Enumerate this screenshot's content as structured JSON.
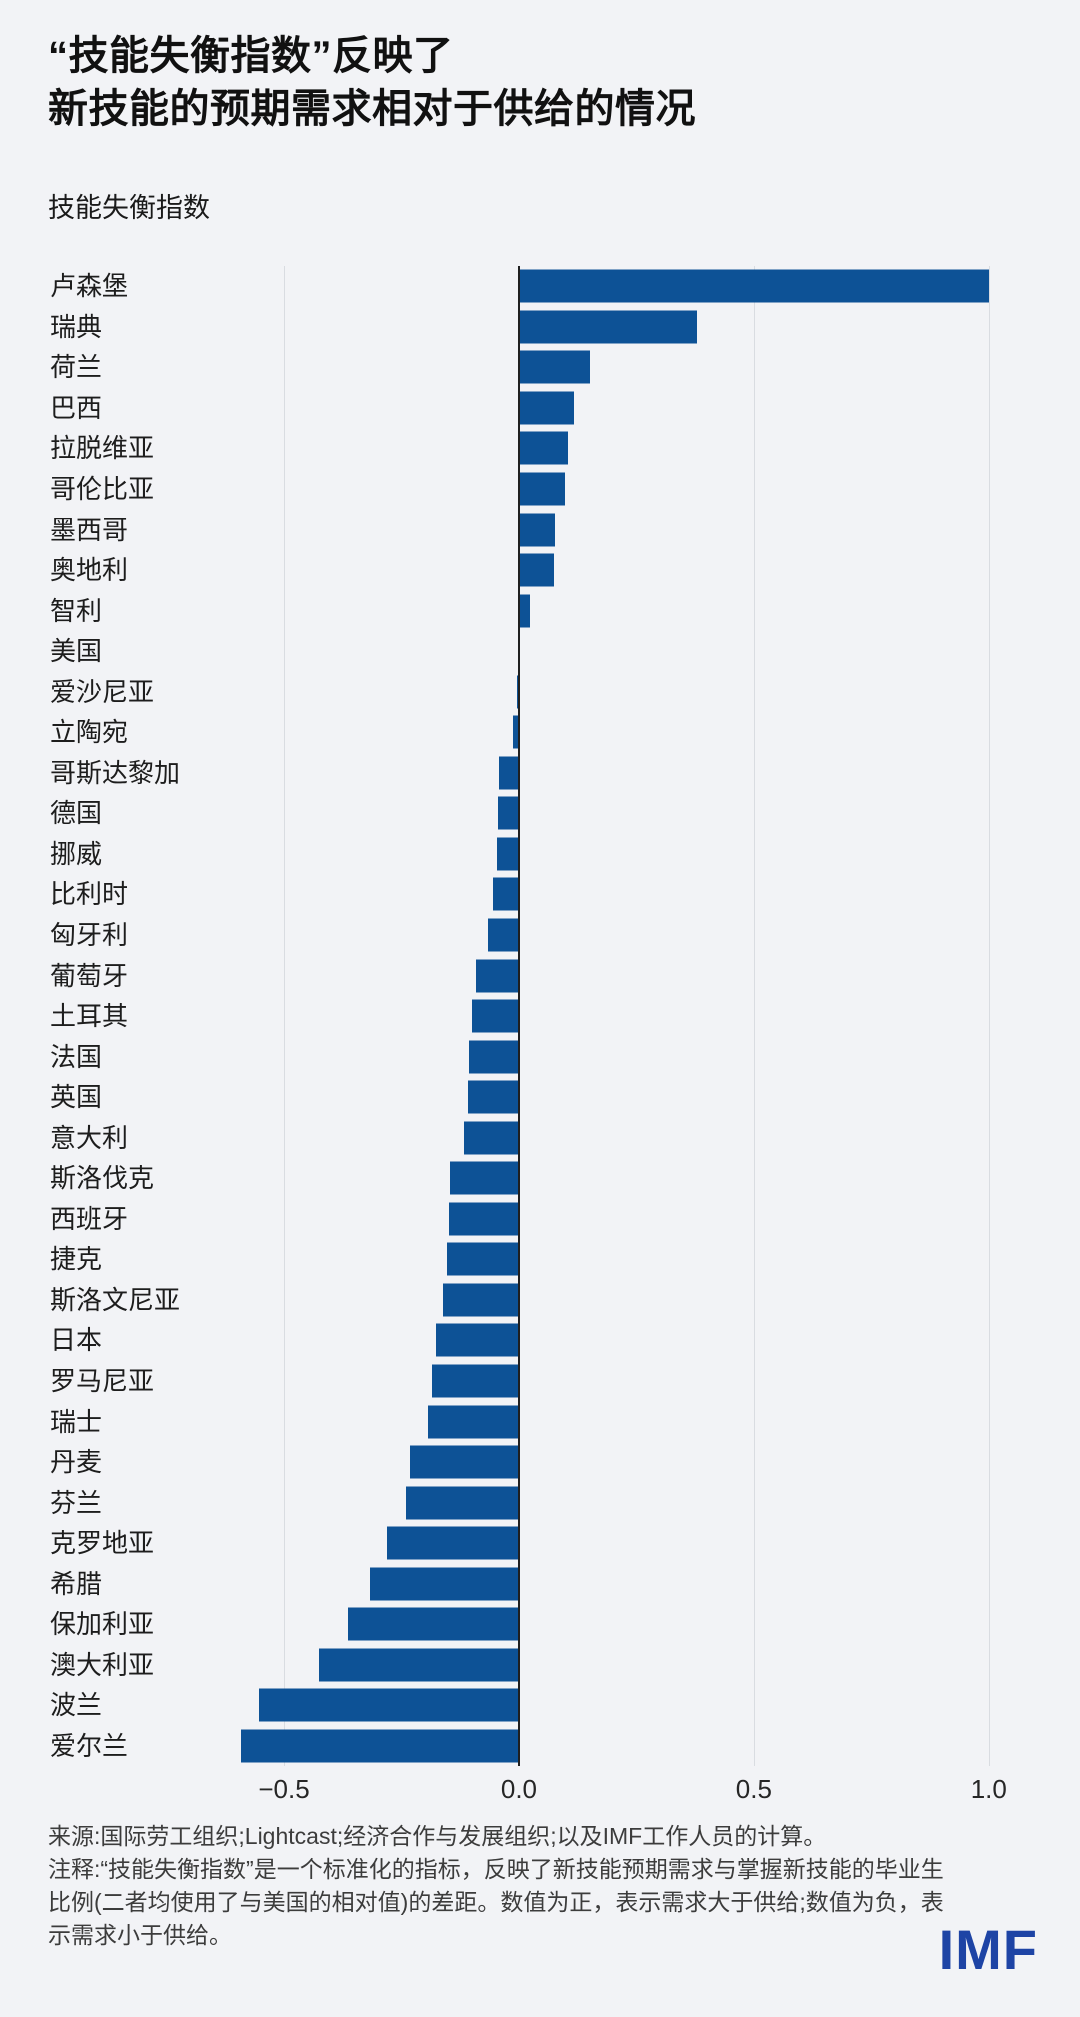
{
  "header": {
    "title_line1": "“技能失衡指数”反映了",
    "title_line2": "新技能的预期需求相对于供给的情况",
    "subtitle": "技能失衡指数"
  },
  "chart_data": {
    "type": "bar",
    "orientation": "horizontal",
    "title": "技能失衡指数",
    "xlabel": "",
    "ylabel": "",
    "categories": [
      "卢森堡",
      "瑞典",
      "荷兰",
      "巴西",
      "拉脱维亚",
      "哥伦比亚",
      "墨西哥",
      "奥地利",
      "智利",
      "美国",
      "爱沙尼亚",
      "立陶宛",
      "哥斯达黎加",
      "德国",
      "挪威",
      "比利时",
      "匈牙利",
      "葡萄牙",
      "土耳其",
      "法国",
      "英国",
      "意大利",
      "斯洛伐克",
      "西班牙",
      "捷克",
      "斯洛文尼亚",
      "日本",
      "罗马尼亚",
      "瑞士",
      "丹麦",
      "芬兰",
      "克罗地亚",
      "希腊",
      "保加利亚",
      "澳大利亚",
      "波兰",
      "爱尔兰"
    ],
    "values": [
      1.0,
      0.38,
      0.152,
      0.117,
      0.104,
      0.098,
      0.077,
      0.074,
      0.024,
      0.0,
      -0.005,
      -0.012,
      -0.042,
      -0.045,
      -0.047,
      -0.056,
      -0.066,
      -0.092,
      -0.101,
      -0.106,
      -0.108,
      -0.116,
      -0.146,
      -0.149,
      -0.153,
      -0.161,
      -0.176,
      -0.185,
      -0.194,
      -0.232,
      -0.241,
      -0.281,
      -0.316,
      -0.364,
      -0.425,
      -0.553,
      -0.592
    ],
    "xlim": [
      -0.764,
      1.109
    ],
    "xticks": [
      -0.5,
      0.0,
      0.5,
      1.0
    ],
    "xtick_labels": [
      "−0.5",
      "0.0",
      "0.5",
      "1.0"
    ],
    "grid": true,
    "legend": "none",
    "bar_color": "#0d5296",
    "grid_color": "#d9dce1",
    "zero_line_color": "#1f1f1f"
  },
  "footer": {
    "source": "来源:国际劳工组织;Lightcast;经济合作与发展组织;以及IMF工作人员的计算。",
    "note": "注释:“技能失衡指数”是一个标准化的指标，反映了新技能预期需求与掌握新技能的毕业生比例(二者均使用了与美国的相对值)的差距。数值为正，表示需求大于供给;数值为负，表示需求小于供给。",
    "logo": "IMF"
  }
}
